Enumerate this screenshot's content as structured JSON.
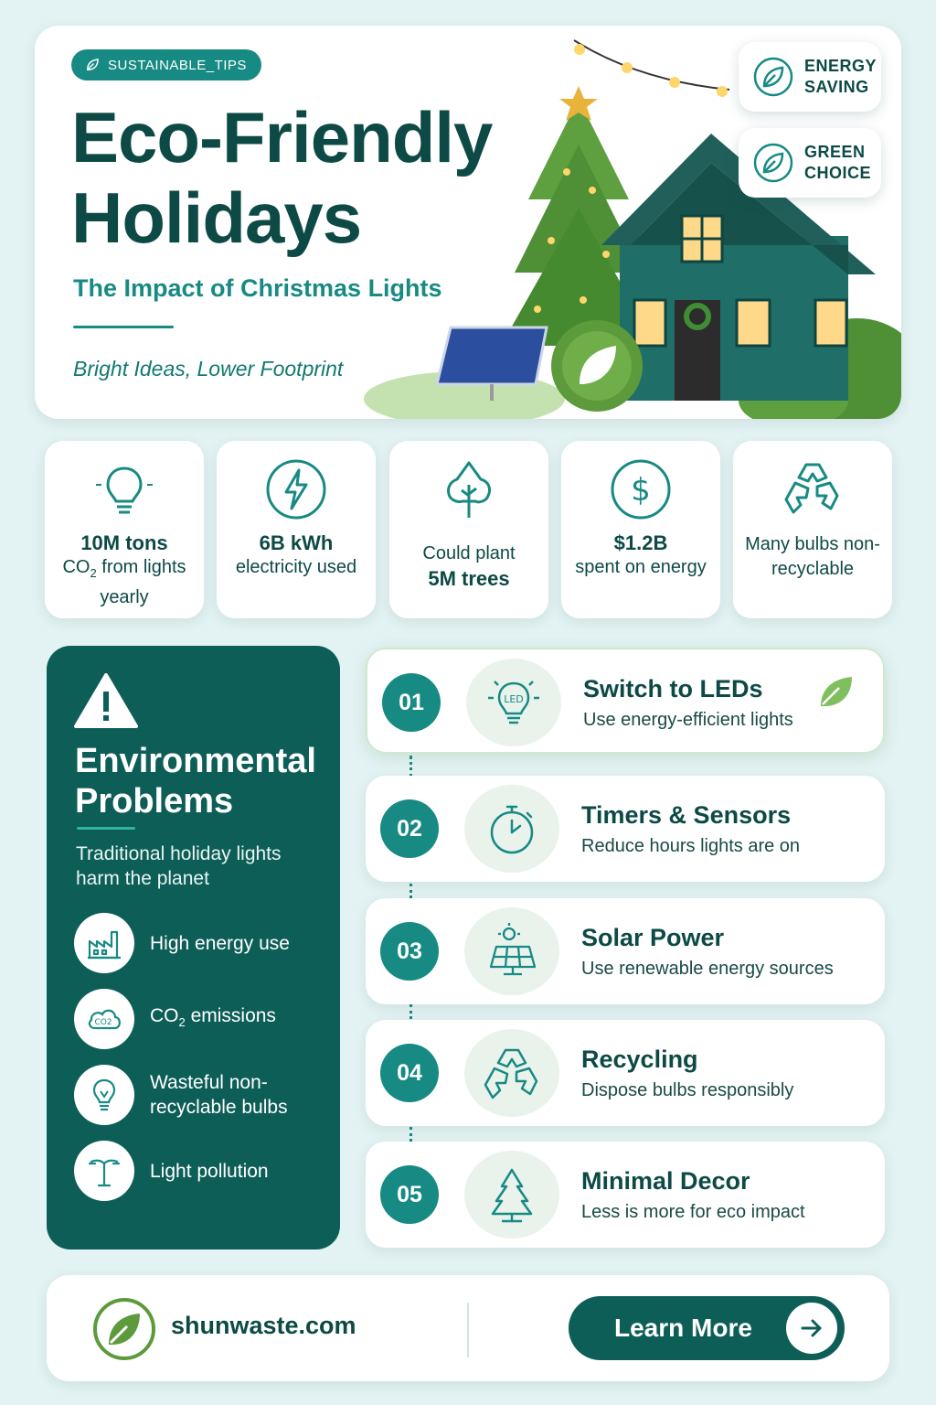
{
  "hero": {
    "tag": "SUSTAINABLE_TIPS",
    "title": "Eco-Friendly Holidays",
    "subtitle": "The Impact of Christmas Lights",
    "tagline": "Bright Ideas, Lower Footprint",
    "badges": [
      {
        "label": "ENERGY SAVING",
        "icon": "leaf-icon"
      },
      {
        "label": "GREEN CHOICE",
        "icon": "leaf-icon"
      }
    ]
  },
  "stats": [
    {
      "bold": "10M tons",
      "text_pre": "CO",
      "text_sub": "2",
      "text_post": " from lights yearly",
      "icon": "lightbulb-icon"
    },
    {
      "bold": "6B kWh",
      "text": "electricity used",
      "icon": "lightning-icon"
    },
    {
      "pre": "Could plant",
      "bold": "5M trees",
      "icon": "tree-icon"
    },
    {
      "bold": "$1.2B",
      "text": "spent on energy",
      "icon": "dollar-icon"
    },
    {
      "text": "Many bulbs non-recyclable",
      "icon": "recycle-icon"
    }
  ],
  "problems": {
    "title": "Environmental Problems",
    "description": "Traditional holiday lights harm the planet",
    "items": [
      {
        "label": "High energy use",
        "icon": "factory-icon"
      },
      {
        "label_pre": "CO",
        "label_sub": "2",
        "label_post": " emissions",
        "icon": "co2-cloud-icon"
      },
      {
        "label": "Wasteful non-recyclable bulbs",
        "icon": "bulb-icon"
      },
      {
        "label": "Light pollution",
        "icon": "street-light-icon"
      }
    ]
  },
  "solutions": [
    {
      "num": "01",
      "title": "Switch to LEDs",
      "desc": "Use energy-efficient lights",
      "icon": "led-bulb-icon",
      "icon_text": "LED"
    },
    {
      "num": "02",
      "title": "Timers & Sensors",
      "desc": "Reduce hours lights are on",
      "icon": "stopwatch-icon"
    },
    {
      "num": "03",
      "title": "Solar Power",
      "desc": "Use renewable energy sources",
      "icon": "solar-panel-icon"
    },
    {
      "num": "04",
      "title": "Recycling",
      "desc": "Dispose bulbs responsibly",
      "icon": "recycle-icon"
    },
    {
      "num": "05",
      "title": "Minimal Decor",
      "desc": "Less is more for eco impact",
      "icon": "tree-icon"
    }
  ],
  "footer": {
    "site": "shunwaste.com",
    "button": "Learn More"
  },
  "colors": {
    "primary": "#0e5e58",
    "accent": "#178a83",
    "background": "#e3f2f2",
    "leaf": "#5c9a3c"
  }
}
